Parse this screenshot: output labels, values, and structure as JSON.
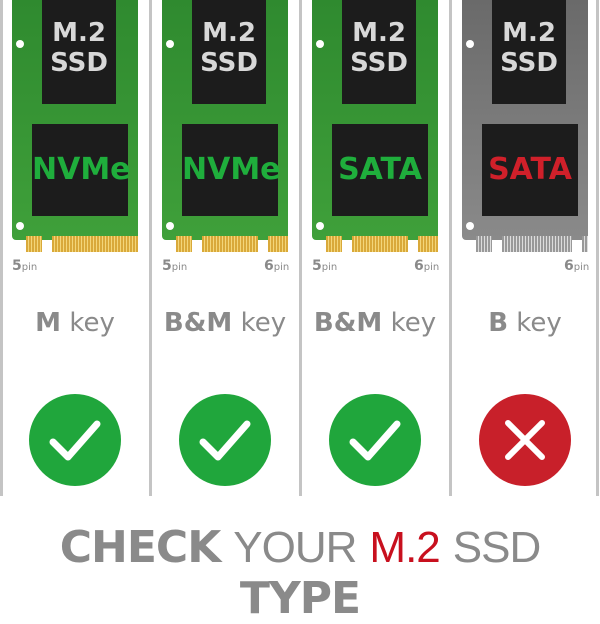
{
  "columns": [
    {
      "chip_top": "M.2\nSSD",
      "chip_type": "NVMe",
      "type_color": "#1fae3c",
      "board": "green",
      "pin_left": "5",
      "pin_right": "",
      "pin_unit": "pin",
      "key_bold": "M",
      "key_word": "key",
      "status": "check",
      "status_color": "#20a63c"
    },
    {
      "chip_top": "M.2\nSSD",
      "chip_type": "NVMe",
      "type_color": "#1fae3c",
      "board": "green",
      "pin_left": "5",
      "pin_right": "6",
      "pin_unit": "pin",
      "key_bold": "B&M",
      "key_word": "key",
      "status": "check",
      "status_color": "#20a63c"
    },
    {
      "chip_top": "M.2\nSSD",
      "chip_type": "SATA",
      "type_color": "#1fae3c",
      "board": "green",
      "pin_left": "5",
      "pin_right": "6",
      "pin_unit": "pin",
      "key_bold": "B&M",
      "key_word": "key",
      "status": "check",
      "status_color": "#20a63c"
    },
    {
      "chip_top": "M.2\nSSD",
      "chip_type": "SATA",
      "type_color": "#d0202a",
      "board": "gray",
      "pin_left": "",
      "pin_right": "6",
      "pin_unit": "pin",
      "key_bold": "B",
      "key_word": "key",
      "status": "cross",
      "status_color": "#c8202a"
    }
  ],
  "title": {
    "part1": "CHECK",
    "part2": "YOUR",
    "part3": "M.2",
    "part4": "SSD",
    "part5": "TYPE",
    "accent": "#c8101e",
    "gray": "#8a8a8a"
  }
}
